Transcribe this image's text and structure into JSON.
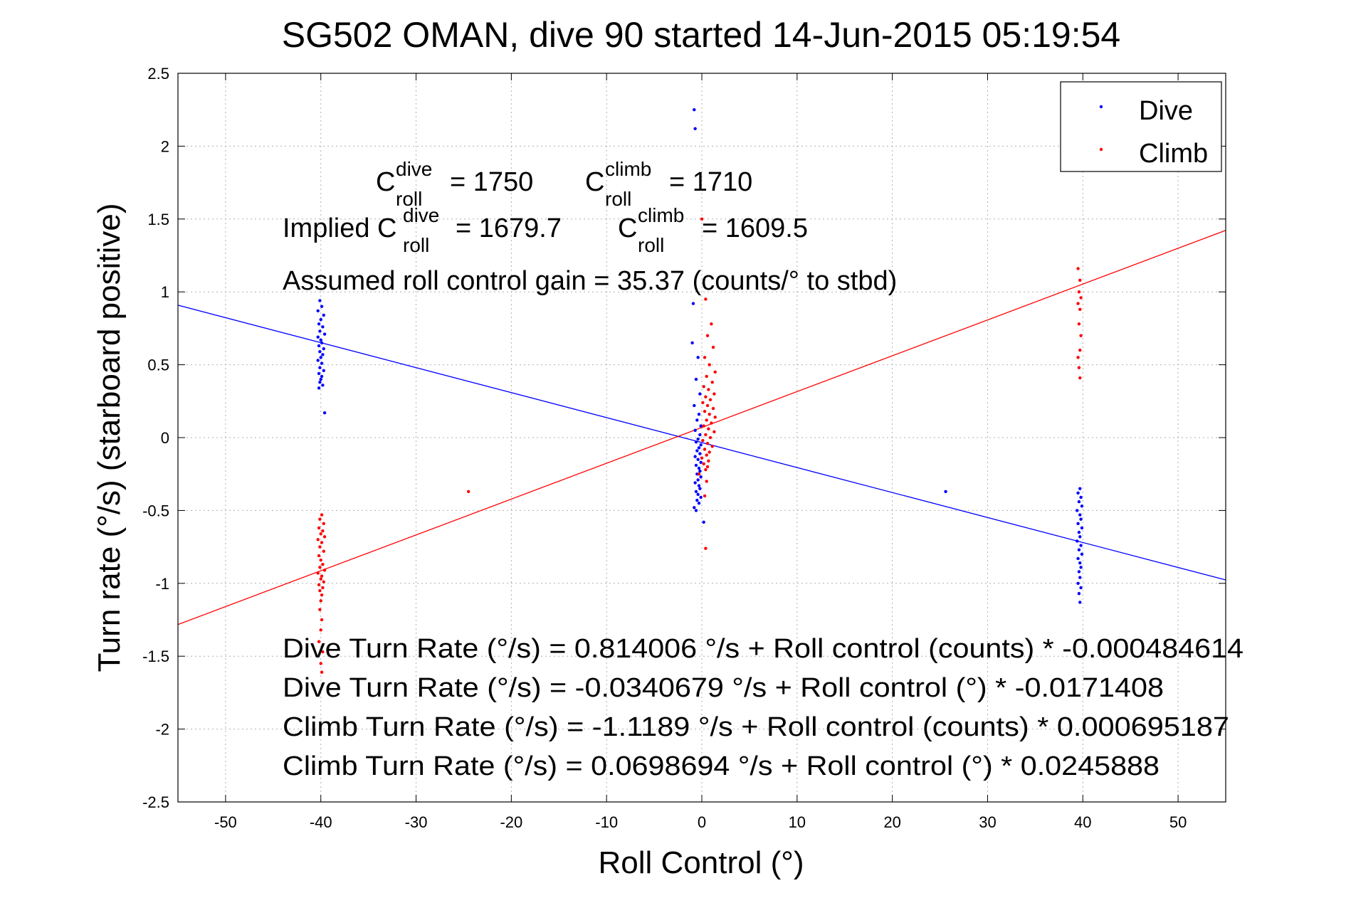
{
  "chart_data": {
    "type": "scatter",
    "title": "SG502 OMAN, dive 90 started 14-Jun-2015 05:19:54",
    "xlabel": "Roll Control (°)",
    "ylabel": "Turn rate (°/s)  (starboard positive)",
    "xlim": [
      -55,
      55
    ],
    "ylim": [
      -2.5,
      2.5
    ],
    "xticks": [
      -50,
      -40,
      -30,
      -20,
      -10,
      0,
      10,
      20,
      30,
      40,
      50
    ],
    "yticks": [
      -2.5,
      -2,
      -1.5,
      -1,
      -0.5,
      0,
      0.5,
      1,
      1.5,
      2,
      2.5
    ],
    "grid": true,
    "legend_position": "top-right",
    "colors": {
      "dive": "#0000ff",
      "climb": "#ff0000"
    },
    "series": [
      {
        "name": "Dive",
        "color": "#0000ff",
        "points": [
          [
            -40.1,
            0.94
          ],
          [
            -39.9,
            0.9
          ],
          [
            -40.3,
            0.87
          ],
          [
            -39.7,
            0.84
          ],
          [
            -40.0,
            0.81
          ],
          [
            -40.2,
            0.78
          ],
          [
            -39.8,
            0.76
          ],
          [
            -40.1,
            0.73
          ],
          [
            -39.6,
            0.71
          ],
          [
            -40.3,
            0.69
          ],
          [
            -40.0,
            0.67
          ],
          [
            -39.9,
            0.65
          ],
          [
            -40.2,
            0.63
          ],
          [
            -39.7,
            0.61
          ],
          [
            -40.1,
            0.59
          ],
          [
            -39.8,
            0.57
          ],
          [
            -40.0,
            0.55
          ],
          [
            -40.3,
            0.53
          ],
          [
            -39.9,
            0.51
          ],
          [
            -40.1,
            0.48
          ],
          [
            -39.7,
            0.46
          ],
          [
            -40.2,
            0.44
          ],
          [
            -39.9,
            0.42
          ],
          [
            -40.0,
            0.4
          ],
          [
            -40.1,
            0.38
          ],
          [
            -39.8,
            0.36
          ],
          [
            -40.2,
            0.34
          ],
          [
            -39.6,
            0.17
          ],
          [
            -0.8,
            2.25
          ],
          [
            -0.7,
            2.12
          ],
          [
            -0.9,
            0.92
          ],
          [
            -1.0,
            0.65
          ],
          [
            -0.4,
            0.55
          ],
          [
            -0.6,
            0.4
          ],
          [
            -0.2,
            0.3
          ],
          [
            -0.8,
            0.22
          ],
          [
            -0.3,
            0.16
          ],
          [
            -0.5,
            0.12
          ],
          [
            -0.1,
            0.08
          ],
          [
            -0.7,
            0.05
          ],
          [
            -0.2,
            0.02
          ],
          [
            -0.4,
            -0.01
          ],
          [
            -0.6,
            -0.03
          ],
          [
            -0.1,
            -0.05
          ],
          [
            -0.3,
            -0.07
          ],
          [
            -0.5,
            -0.09
          ],
          [
            -0.2,
            -0.11
          ],
          [
            -0.7,
            -0.13
          ],
          [
            -0.4,
            -0.15
          ],
          [
            -0.1,
            -0.17
          ],
          [
            -0.6,
            -0.19
          ],
          [
            -0.3,
            -0.21
          ],
          [
            -0.2,
            -0.23
          ],
          [
            -0.5,
            -0.25
          ],
          [
            -0.1,
            -0.27
          ],
          [
            -0.4,
            -0.29
          ],
          [
            -0.7,
            -0.31
          ],
          [
            -0.3,
            -0.33
          ],
          [
            -0.2,
            -0.35
          ],
          [
            -0.6,
            -0.37
          ],
          [
            -0.4,
            -0.39
          ],
          [
            -0.1,
            -0.41
          ],
          [
            -0.5,
            -0.43
          ],
          [
            -0.3,
            -0.45
          ],
          [
            -0.8,
            -0.48
          ],
          [
            -0.6,
            -0.5
          ],
          [
            0.2,
            -0.58
          ],
          [
            25.6,
            -0.37
          ],
          [
            39.7,
            -0.35
          ],
          [
            39.5,
            -0.38
          ],
          [
            39.8,
            -0.41
          ],
          [
            39.6,
            -0.44
          ],
          [
            39.9,
            -0.47
          ],
          [
            39.4,
            -0.5
          ],
          [
            39.7,
            -0.53
          ],
          [
            39.8,
            -0.56
          ],
          [
            39.5,
            -0.59
          ],
          [
            39.9,
            -0.62
          ],
          [
            39.6,
            -0.65
          ],
          [
            39.7,
            -0.68
          ],
          [
            39.4,
            -0.71
          ],
          [
            39.8,
            -0.74
          ],
          [
            39.6,
            -0.77
          ],
          [
            39.9,
            -0.8
          ],
          [
            39.5,
            -0.83
          ],
          [
            39.7,
            -0.86
          ],
          [
            39.8,
            -0.89
          ],
          [
            39.6,
            -0.92
          ],
          [
            39.7,
            -0.96
          ],
          [
            39.5,
            -1.0
          ],
          [
            39.8,
            -1.03
          ],
          [
            39.6,
            -1.07
          ],
          [
            39.7,
            -1.13
          ]
        ]
      },
      {
        "name": "Climb",
        "color": "#ff0000",
        "points": [
          [
            -39.9,
            -0.53
          ],
          [
            -40.1,
            -0.56
          ],
          [
            -39.7,
            -0.59
          ],
          [
            -40.2,
            -0.62
          ],
          [
            -39.8,
            -0.64
          ],
          [
            -40.0,
            -0.66
          ],
          [
            -39.6,
            -0.68
          ],
          [
            -40.3,
            -0.7
          ],
          [
            -39.9,
            -0.72
          ],
          [
            -40.1,
            -0.75
          ],
          [
            -39.7,
            -0.78
          ],
          [
            -40.2,
            -0.81
          ],
          [
            -40.0,
            -0.84
          ],
          [
            -39.8,
            -0.87
          ],
          [
            -40.1,
            -0.89
          ],
          [
            -39.6,
            -0.91
          ],
          [
            -40.3,
            -0.93
          ],
          [
            -39.9,
            -0.95
          ],
          [
            -40.0,
            -0.97
          ],
          [
            -39.7,
            -0.99
          ],
          [
            -40.2,
            -1.01
          ],
          [
            -39.8,
            -1.03
          ],
          [
            -40.1,
            -1.05
          ],
          [
            -39.9,
            -1.08
          ],
          [
            -40.0,
            -1.12
          ],
          [
            -40.1,
            -1.18
          ],
          [
            -39.9,
            -1.25
          ],
          [
            -40.0,
            -1.32
          ],
          [
            -40.2,
            -1.4
          ],
          [
            -39.8,
            -1.47
          ],
          [
            -40.0,
            -1.55
          ],
          [
            -39.9,
            -1.61
          ],
          [
            -24.5,
            -0.37
          ],
          [
            0.4,
            0.95
          ],
          [
            1.0,
            0.78
          ],
          [
            0.6,
            0.7
          ],
          [
            1.2,
            0.62
          ],
          [
            0.3,
            0.55
          ],
          [
            0.8,
            0.5
          ],
          [
            1.4,
            0.45
          ],
          [
            0.5,
            0.42
          ],
          [
            1.1,
            0.38
          ],
          [
            0.2,
            0.35
          ],
          [
            0.7,
            0.33
          ],
          [
            1.3,
            0.3
          ],
          [
            0.4,
            0.28
          ],
          [
            0.9,
            0.26
          ],
          [
            0.1,
            0.24
          ],
          [
            0.6,
            0.22
          ],
          [
            1.2,
            0.2
          ],
          [
            0.3,
            0.18
          ],
          [
            0.8,
            0.16
          ],
          [
            1.4,
            0.14
          ],
          [
            0.5,
            0.12
          ],
          [
            1.0,
            0.1
          ],
          [
            0.2,
            0.08
          ],
          [
            0.7,
            0.06
          ],
          [
            1.3,
            0.04
          ],
          [
            0.4,
            0.02
          ],
          [
            0.9,
            0.0
          ],
          [
            0.1,
            -0.02
          ],
          [
            0.6,
            -0.04
          ],
          [
            1.1,
            -0.06
          ],
          [
            0.3,
            -0.08
          ],
          [
            0.8,
            -0.1
          ],
          [
            0.5,
            -0.12
          ],
          [
            0.0,
            -0.14
          ],
          [
            0.7,
            -0.16
          ],
          [
            0.2,
            -0.18
          ],
          [
            0.6,
            -0.2
          ],
          [
            0.4,
            -0.22
          ],
          [
            -0.3,
            -0.25
          ],
          [
            0.5,
            -0.3
          ],
          [
            0.3,
            -0.4
          ],
          [
            0.4,
            -0.76
          ],
          [
            0.0,
            1.5
          ],
          [
            39.5,
            1.16
          ],
          [
            39.7,
            1.08
          ],
          [
            39.6,
            1.0
          ],
          [
            39.8,
            0.96
          ],
          [
            39.5,
            0.92
          ],
          [
            39.7,
            0.88
          ],
          [
            39.6,
            0.78
          ],
          [
            39.8,
            0.7
          ],
          [
            39.7,
            0.6
          ],
          [
            39.5,
            0.55
          ],
          [
            39.6,
            0.48
          ],
          [
            39.7,
            0.41
          ]
        ]
      }
    ],
    "fits": [
      {
        "series": "Dive",
        "intercept": -0.0340679,
        "slope": -0.0171408,
        "color": "#0000ff"
      },
      {
        "series": "Climb",
        "intercept": 0.0698694,
        "slope": 0.0245888,
        "color": "#ff0000"
      }
    ],
    "annotations": {
      "c_dive_base": "C",
      "c_dive_sup": "dive",
      "c_dive_sub": "roll",
      "c_dive_value": "= 1750",
      "c_climb_base": "C",
      "c_climb_sup": "climb",
      "c_climb_sub": "roll",
      "c_climb_value": "= 1710",
      "implied_prefix": "Implied C",
      "implied_dive_sup": "dive",
      "implied_dive_sub": "roll",
      "implied_dive_value": "= 1679.7",
      "implied_climb_base": "C",
      "implied_climb_sup": "climb",
      "implied_climb_sub": "roll",
      "implied_climb_value": "= 1609.5",
      "gain": "Assumed roll control gain = 35.37 (counts/° to stbd)",
      "eq1": "Dive Turn Rate (°/s) = 0.814006 °/s + Roll control (counts) * -0.000484614",
      "eq2": "Dive Turn Rate (°/s) = -0.0340679 °/s + Roll control (°) * -0.0171408",
      "eq3": "Climb Turn Rate (°/s) = -1.1189 °/s + Roll control (counts) * 0.000695187",
      "eq4": "Climb Turn Rate (°/s) = 0.0698694 °/s + Roll control (°) * 0.0245888"
    }
  }
}
